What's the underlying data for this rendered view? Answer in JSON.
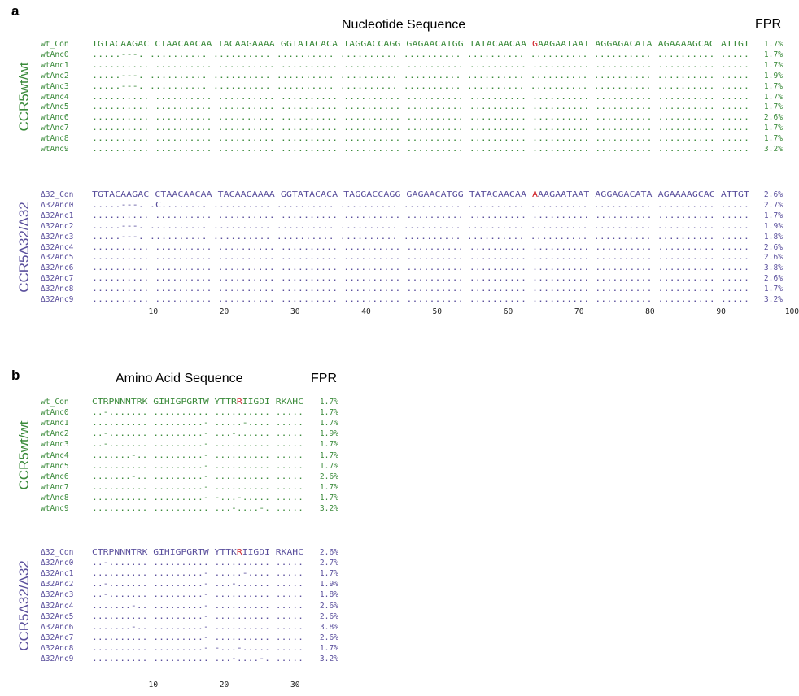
{
  "colors": {
    "wt": "#3a8a3a",
    "d32": "#5a4f9c",
    "highlight": "#d0232a"
  },
  "panel_a": {
    "letter": "a",
    "title": "Nucleotide Sequence",
    "fpr_header": "FPR",
    "groups": [
      {
        "label": "CCR5wt/wt",
        "color": "wt",
        "rows": [
          {
            "name": "wt_Con",
            "seq": "TGTACAAGAC CTAACAACAA TACAAGAAAA GGTATACACA TAGGACCAGG GAGAACATGG TATACAACAA GAAGAATAAT AGGAGACATA AGAAAAGCAC ATTGT",
            "fpr": "1.7%",
            "highlight": 70
          },
          {
            "name": "wtAnc0",
            "seq": ".....---. .......... .......... .......... .......... .......... .......... .......... .......... .......... .....",
            "fpr": "1.7%"
          },
          {
            "name": "wtAnc1",
            "seq": ".......... .......... .......... .......... .......... .......... .......... .......... .......... .......... .....",
            "fpr": "1.7%"
          },
          {
            "name": "wtAnc2",
            "seq": ".....---. .......... .......... .......... .......... .......... .......... .......... .......... .......... .....",
            "fpr": "1.9%"
          },
          {
            "name": "wtAnc3",
            "seq": ".....---. .......... .......... .......... .......... .......... .......... .......... .......... .......... .....",
            "fpr": "1.7%"
          },
          {
            "name": "wtAnc4",
            "seq": ".......... .......... .......... .......... .......... .......... .......... .......... .......... .......... .....",
            "fpr": "1.7%"
          },
          {
            "name": "wtAnc5",
            "seq": ".......... .......... .......... .......... .......... .......... .......... .......... .......... .......... .....",
            "fpr": "1.7%"
          },
          {
            "name": "wtAnc6",
            "seq": ".......... .......... .......... .......... .......... .......... .......... .......... .......... .......... .....",
            "fpr": "2.6%"
          },
          {
            "name": "wtAnc7",
            "seq": ".......... .......... .......... .......... .......... .......... .......... .......... .......... .......... .....",
            "fpr": "1.7%"
          },
          {
            "name": "wtAnc8",
            "seq": ".......... .......... .......... .......... .......... .......... .......... .......... .......... .......... .....",
            "fpr": "1.7%"
          },
          {
            "name": "wtAnc9",
            "seq": ".......... .......... .......... .......... .......... .......... .......... .......... .......... .......... .....",
            "fpr": "3.2%"
          }
        ]
      },
      {
        "label": "CCR5Δ32/Δ32",
        "color": "d32",
        "rows": [
          {
            "name": "Δ32_Con",
            "seq": "TGTACAAGAC CTAACAACAA TACAAGAAAA GGTATACACA TAGGACCAGG GAGAACATGG TATACAACAA AAAGAATAAT AGGAGACATA AGAAAAGCAC ATTGT",
            "fpr": "2.6%",
            "highlight": 70
          },
          {
            "name": "Δ32Anc0",
            "seq": ".....---. .C........ .......... .......... .......... .......... .......... .......... .......... .......... .....",
            "fpr": "2.7%"
          },
          {
            "name": "Δ32Anc1",
            "seq": ".......... .......... .......... .......... .......... .......... .......... .......... .......... .......... .....",
            "fpr": "1.7%"
          },
          {
            "name": "Δ32Anc2",
            "seq": ".....---. .......... .......... .......... .......... .......... .......... .......... .......... .......... .....",
            "fpr": "1.9%"
          },
          {
            "name": "Δ32Anc3",
            "seq": ".....---. .......... .......... .......... .......... .......... .......... .......... .......... .......... .....",
            "fpr": "1.8%"
          },
          {
            "name": "Δ32Anc4",
            "seq": ".......... .......... .......... .......... .......... .......... .......... .......... .......... .......... .....",
            "fpr": "2.6%"
          },
          {
            "name": "Δ32Anc5",
            "seq": ".......... .......... .......... .......... .......... .......... .......... .......... .......... .......... .....",
            "fpr": "2.6%"
          },
          {
            "name": "Δ32Anc6",
            "seq": ".......... .......... .......... .......... .......... .......... .......... .......... .......... .......... .....",
            "fpr": "3.8%"
          },
          {
            "name": "Δ32Anc7",
            "seq": ".......... .......... .......... .......... .......... .......... .......... .......... .......... .......... .....",
            "fpr": "2.6%"
          },
          {
            "name": "Δ32Anc8",
            "seq": ".......... .......... .......... .......... .......... .......... .......... .......... .......... .......... .....",
            "fpr": "1.7%"
          },
          {
            "name": "Δ32Anc9",
            "seq": ".......... .......... .......... .......... .......... .......... .......... .......... .......... .......... .....",
            "fpr": "3.2%"
          }
        ]
      }
    ],
    "ticks": [
      "10",
      "20",
      "30",
      "40",
      "50",
      "60",
      "70",
      "80",
      "90",
      "100"
    ]
  },
  "panel_b": {
    "letter": "b",
    "title": "Amino Acid Sequence",
    "fpr_header": "FPR",
    "groups": [
      {
        "label": "CCR5wt/wt",
        "color": "wt",
        "rows": [
          {
            "name": "wt_Con",
            "seq": "CTRPNNNTRK GIHIGPGRTW YTTRRIIGDI RKAHC",
            "fpr": "1.7%",
            "highlight": 24
          },
          {
            "name": "wtAnc0",
            "seq": "..-....... .......... .......... .....",
            "fpr": "1.7%"
          },
          {
            "name": "wtAnc1",
            "seq": ".......... .........- .....-.... .....",
            "fpr": "1.7%"
          },
          {
            "name": "wtAnc2",
            "seq": "..-....... .........- ...-...... .....",
            "fpr": "1.9%"
          },
          {
            "name": "wtAnc3",
            "seq": "..-....... .........- .......... .....",
            "fpr": "1.7%"
          },
          {
            "name": "wtAnc4",
            "seq": ".......-.. .........- .......... .....",
            "fpr": "1.7%"
          },
          {
            "name": "wtAnc5",
            "seq": ".......... .........- .......... .....",
            "fpr": "1.7%"
          },
          {
            "name": "wtAnc6",
            "seq": ".......-.. .........- .......... .....",
            "fpr": "2.6%"
          },
          {
            "name": "wtAnc7",
            "seq": ".......... .........- .......... .....",
            "fpr": "1.7%"
          },
          {
            "name": "wtAnc8",
            "seq": ".......... .........- -...-..... .....",
            "fpr": "1.7%"
          },
          {
            "name": "wtAnc9",
            "seq": ".......... .......... ...-....-. .....",
            "fpr": "3.2%"
          }
        ]
      },
      {
        "label": "CCR5Δ32/Δ32",
        "color": "d32",
        "rows": [
          {
            "name": "Δ32_Con",
            "seq": "CTRPNNNTRK GIHIGPGRTW YTTKRIIGDI RKAHC",
            "fpr": "2.6%",
            "highlight": 24
          },
          {
            "name": "Δ32Anc0",
            "seq": "..-....... .......... .......... .....",
            "fpr": "2.7%"
          },
          {
            "name": "Δ32Anc1",
            "seq": ".......... .........- .....-.... .....",
            "fpr": "1.7%"
          },
          {
            "name": "Δ32Anc2",
            "seq": "..-....... .........- ...-...... .....",
            "fpr": "1.9%"
          },
          {
            "name": "Δ32Anc3",
            "seq": "..-....... .........- .......... .....",
            "fpr": "1.8%"
          },
          {
            "name": "Δ32Anc4",
            "seq": ".......-.. .........- .......... .....",
            "fpr": "2.6%"
          },
          {
            "name": "Δ32Anc5",
            "seq": ".......... .........- .......... .....",
            "fpr": "2.6%"
          },
          {
            "name": "Δ32Anc6",
            "seq": ".......-.. .........- .......... .....",
            "fpr": "3.8%"
          },
          {
            "name": "Δ32Anc7",
            "seq": ".......... .........- .......... .....",
            "fpr": "2.6%"
          },
          {
            "name": "Δ32Anc8",
            "seq": ".......... .........- -...-..... .....",
            "fpr": "1.7%"
          },
          {
            "name": "Δ32Anc9",
            "seq": ".......... .......... ...-....-. .....",
            "fpr": "3.2%"
          }
        ]
      }
    ],
    "ticks": [
      "10",
      "20",
      "30"
    ]
  }
}
